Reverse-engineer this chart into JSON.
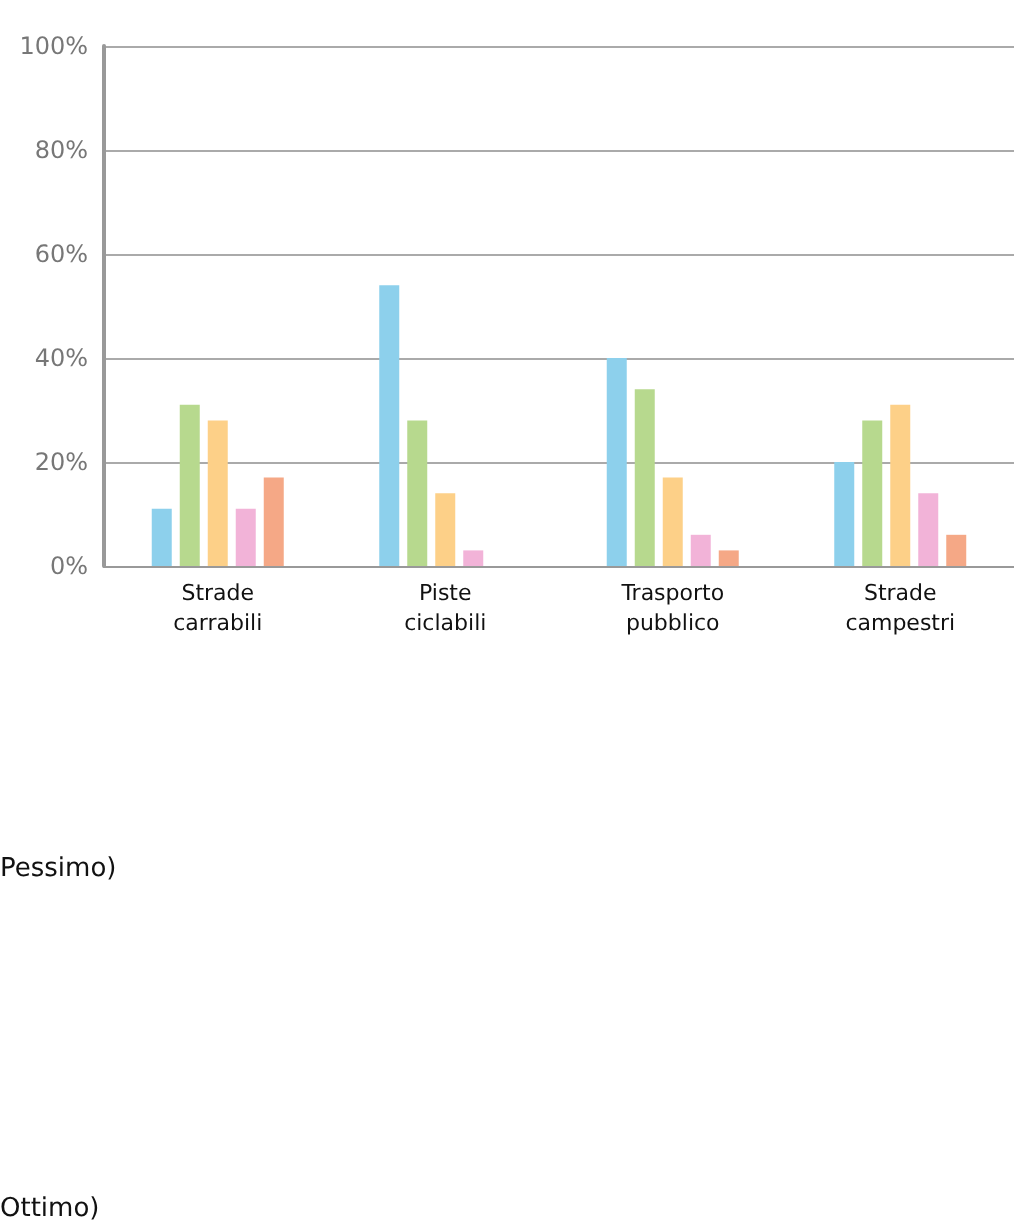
{
  "chart_data": {
    "type": "bar",
    "categories": [
      "Strade\ncarrabili",
      "Piste\nciclabili",
      "Trasporto\npubblico",
      "Strade\ncampestri"
    ],
    "series": [
      {
        "color": "#8dd0ec",
        "values": [
          11,
          54,
          40,
          20
        ]
      },
      {
        "color": "#b7d98e",
        "values": [
          31,
          28,
          34,
          28
        ]
      },
      {
        "color": "#fdd088",
        "values": [
          28,
          14,
          17,
          31
        ]
      },
      {
        "color": "#f2b3d8",
        "values": [
          11,
          3,
          6,
          14
        ]
      },
      {
        "color": "#f5a886",
        "values": [
          17,
          0,
          3,
          6
        ]
      }
    ],
    "ylim": [
      0,
      100
    ],
    "yticks": [
      {
        "value": 0,
        "label": "0%"
      },
      {
        "value": 20,
        "label": "20%"
      },
      {
        "value": 40,
        "label": "40%"
      },
      {
        "value": 60,
        "label": "60%"
      },
      {
        "value": 80,
        "label": "80%"
      },
      {
        "value": 100,
        "label": "100%"
      }
    ],
    "grid": "y",
    "annotations": [
      "Pessimo)",
      "Ottimo)"
    ]
  }
}
